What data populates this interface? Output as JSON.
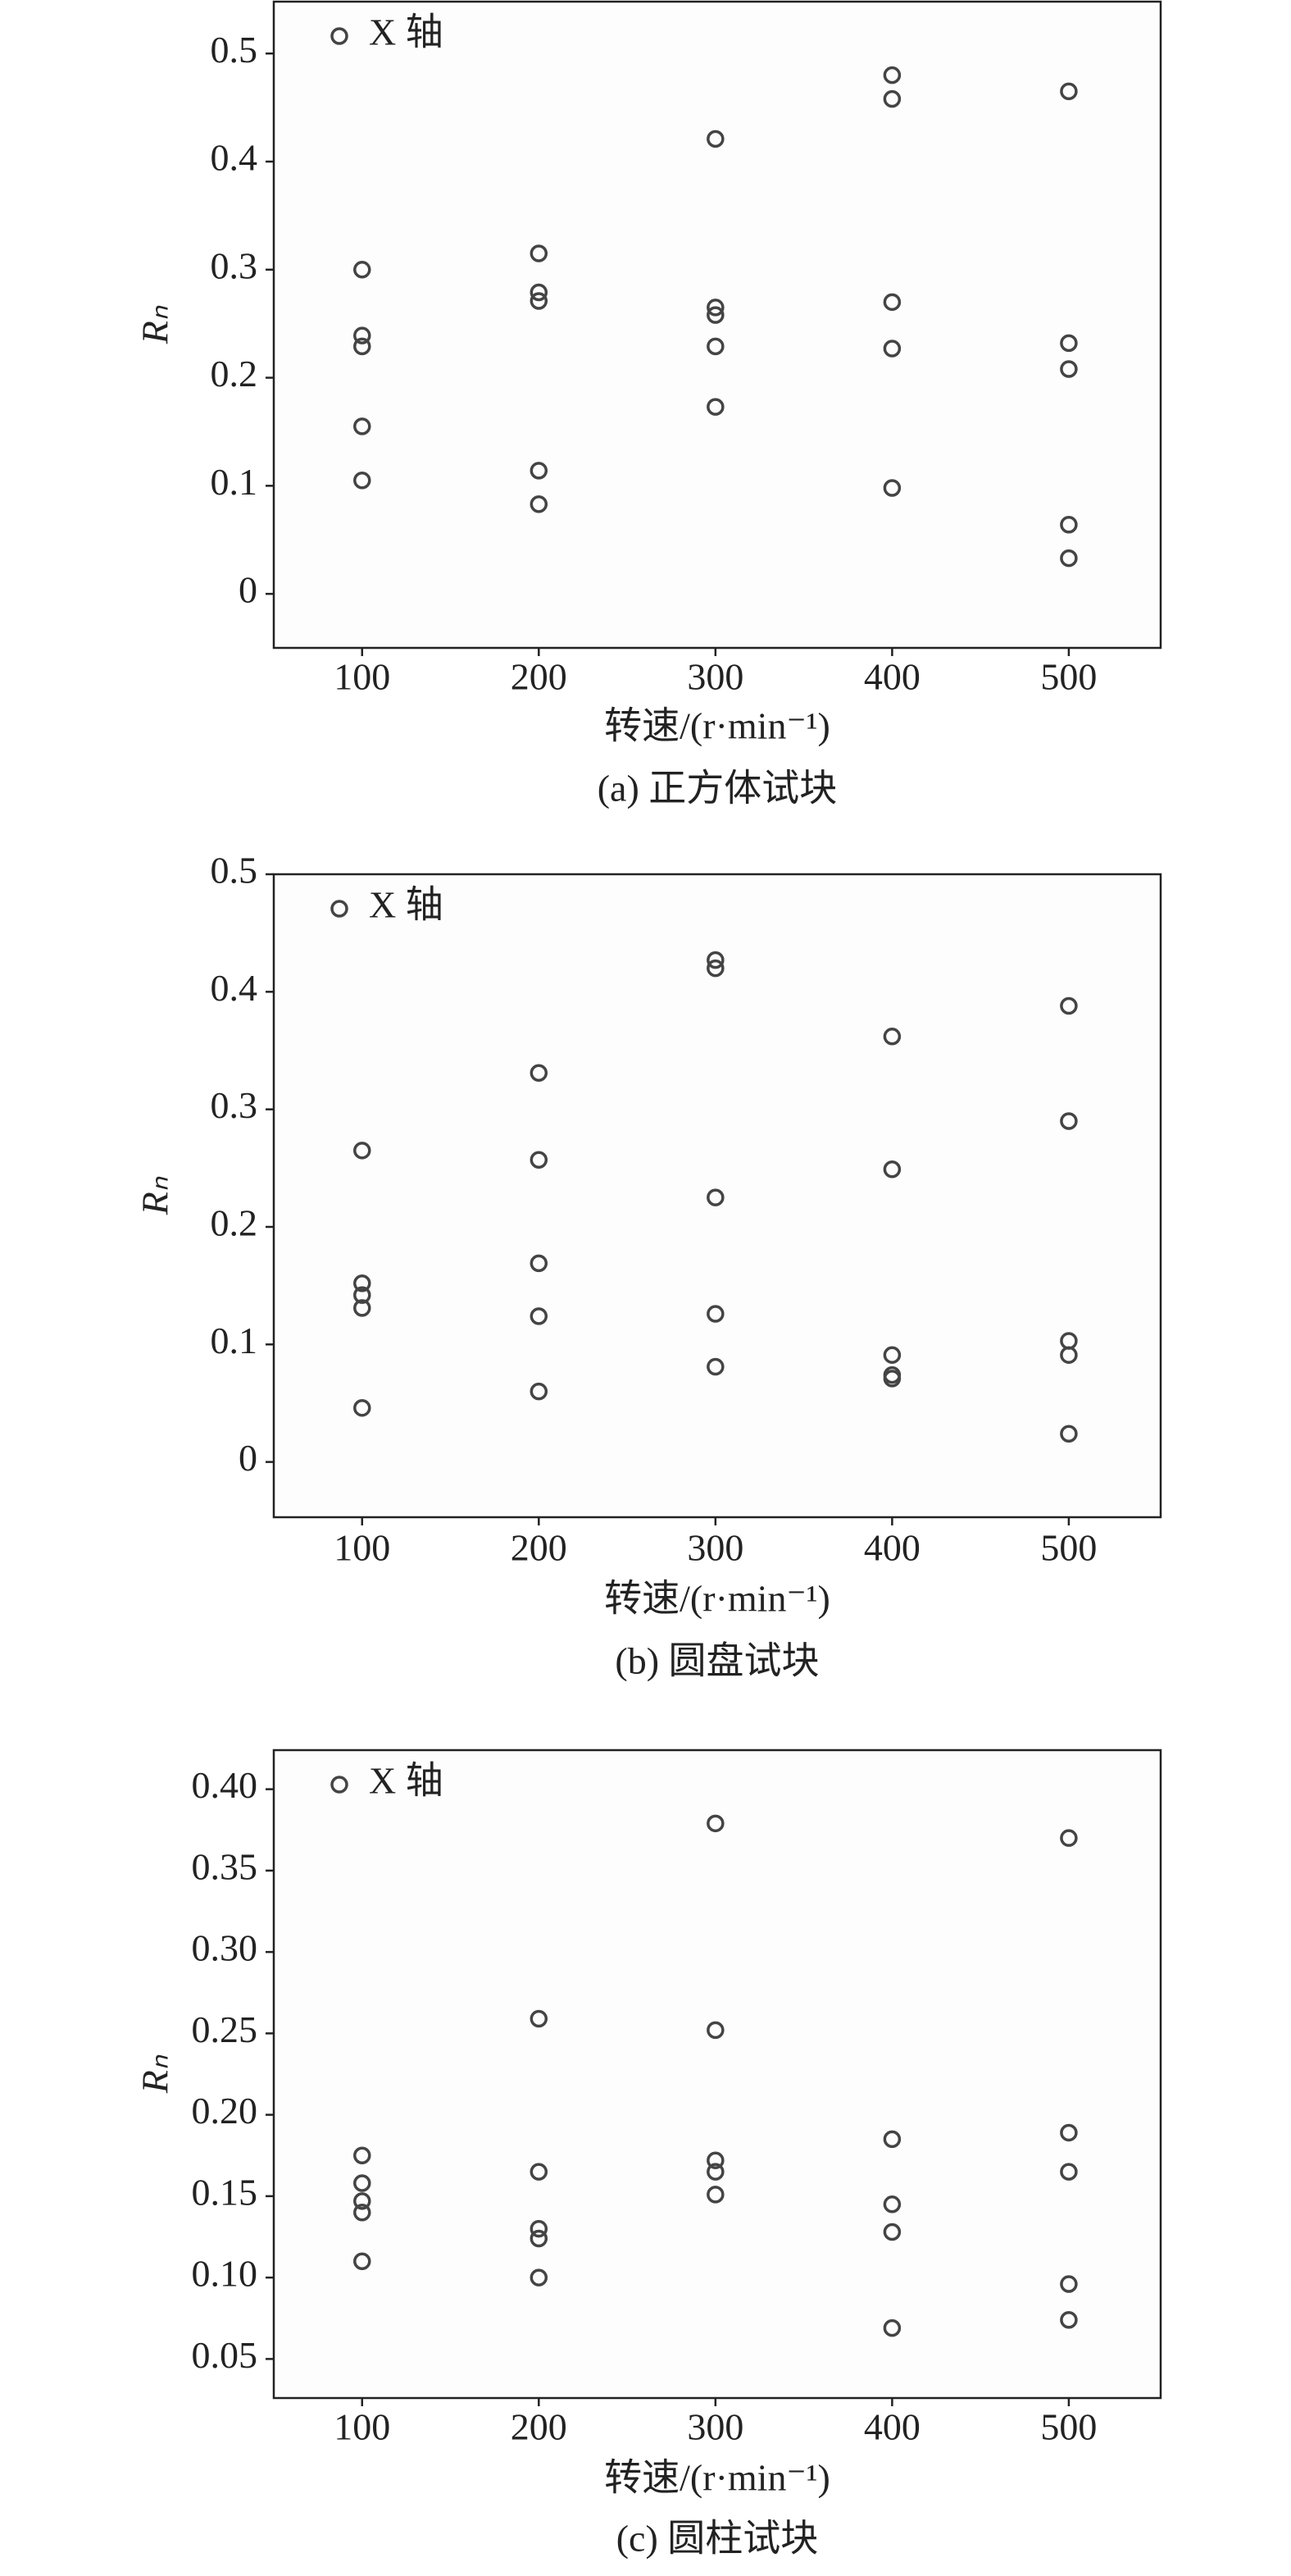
{
  "chart_data": [
    {
      "type": "scatter",
      "xlabel": "转速/(r·min⁻¹)",
      "ylabel": "Rₙ",
      "caption": "(a) 正方体试块",
      "xlim": [
        50,
        552
      ],
      "xticks": [
        100,
        200,
        300,
        400,
        500
      ],
      "ylim": [
        -0.05,
        0.548
      ],
      "yticks": [
        0,
        0.1,
        0.2,
        0.3,
        0.4,
        0.5
      ],
      "legend": "upper left",
      "series": [
        {
          "name": "X 轴",
          "color": "#444444",
          "x": [
            100,
            100,
            100,
            100,
            100,
            200,
            200,
            200,
            200,
            200,
            300,
            300,
            300,
            300,
            300,
            400,
            400,
            400,
            400,
            400,
            500,
            500,
            500,
            500,
            500
          ],
          "values": [
            0.3,
            0.239,
            0.229,
            0.155,
            0.105,
            0.315,
            0.279,
            0.271,
            0.114,
            0.083,
            0.421,
            0.265,
            0.258,
            0.229,
            0.173,
            0.48,
            0.458,
            0.27,
            0.227,
            0.098,
            0.465,
            0.232,
            0.208,
            0.064,
            0.033
          ]
        }
      ]
    },
    {
      "type": "scatter",
      "xlabel": "转速/(r·min⁻¹)",
      "ylabel": "Rₙ",
      "caption": "(b) 圆盘试块",
      "xlim": [
        50,
        552
      ],
      "xticks": [
        100,
        200,
        300,
        400,
        500
      ],
      "ylim": [
        -0.047,
        0.5
      ],
      "yticks": [
        0,
        0.1,
        0.2,
        0.3,
        0.4,
        0.5
      ],
      "legend": "upper left",
      "series": [
        {
          "name": "X 轴",
          "color": "#444444",
          "x": [
            100,
            100,
            100,
            100,
            100,
            200,
            200,
            200,
            200,
            200,
            300,
            300,
            300,
            300,
            300,
            400,
            400,
            400,
            400,
            400,
            500,
            500,
            500,
            500,
            500
          ],
          "values": [
            0.265,
            0.152,
            0.142,
            0.131,
            0.046,
            0.331,
            0.257,
            0.169,
            0.124,
            0.06,
            0.427,
            0.42,
            0.225,
            0.126,
            0.081,
            0.362,
            0.249,
            0.091,
            0.074,
            0.071,
            0.388,
            0.29,
            0.103,
            0.091,
            0.024
          ]
        }
      ]
    },
    {
      "type": "scatter",
      "xlabel": "转速/(r·min⁻¹)",
      "ylabel": "Rₙ",
      "caption": "(c) 圆柱试块",
      "xlim": [
        50,
        552
      ],
      "xticks": [
        100,
        200,
        300,
        400,
        500
      ],
      "ylim": [
        0.026,
        0.424
      ],
      "yticks": [
        {
          "value": 0.05,
          "label": "0.05"
        },
        {
          "value": 0.1,
          "label": "0.10"
        },
        {
          "value": 0.15,
          "label": "0.15"
        },
        {
          "value": 0.2,
          "label": "0.20"
        },
        {
          "value": 0.25,
          "label": "0.25"
        },
        {
          "value": 0.3,
          "label": "0.30"
        },
        {
          "value": 0.35,
          "label": "0.35"
        },
        {
          "value": 0.4,
          "label": "0.40"
        }
      ],
      "legend": "upper left",
      "series": [
        {
          "name": "X 轴",
          "color": "#444444",
          "x": [
            100,
            100,
            100,
            100,
            100,
            200,
            200,
            200,
            200,
            200,
            300,
            300,
            300,
            300,
            300,
            400,
            400,
            400,
            400,
            500,
            500,
            500,
            500,
            500
          ],
          "values": [
            0.175,
            0.158,
            0.147,
            0.14,
            0.11,
            0.259,
            0.165,
            0.13,
            0.124,
            0.1,
            0.379,
            0.252,
            0.172,
            0.165,
            0.151,
            0.185,
            0.145,
            0.128,
            0.069,
            0.37,
            0.189,
            0.165,
            0.096,
            0.074
          ]
        }
      ]
    }
  ]
}
